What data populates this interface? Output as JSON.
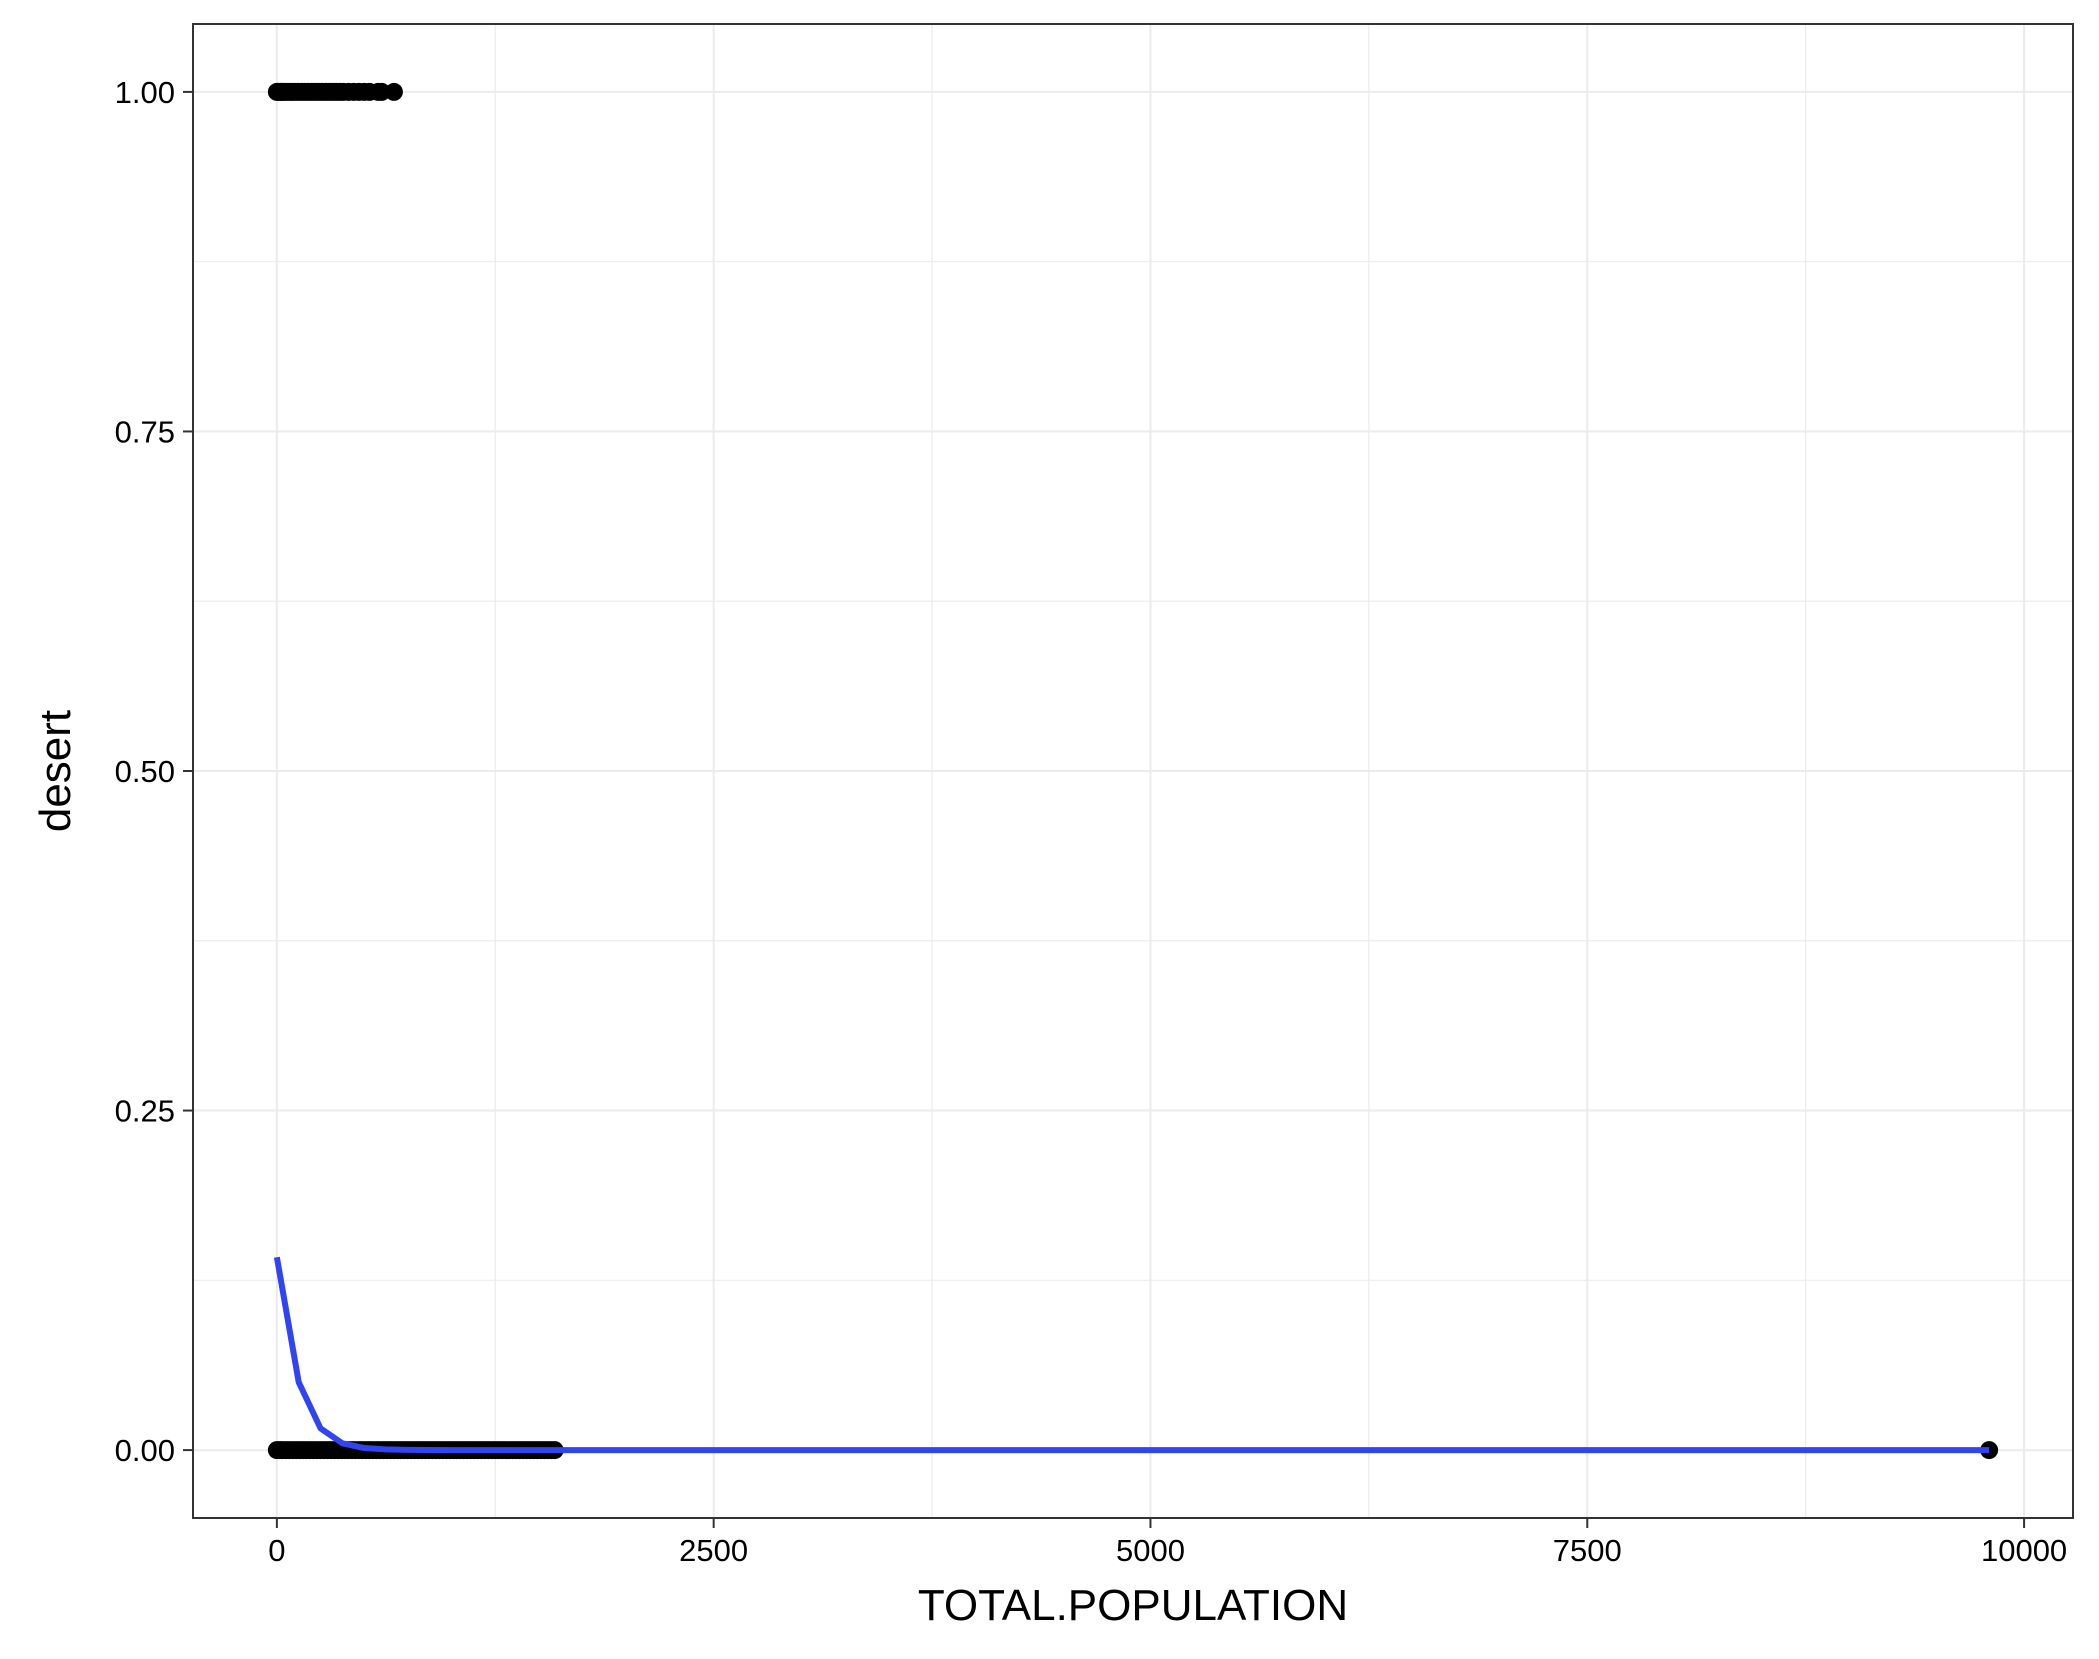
{
  "chart_data": {
    "type": "scatter",
    "title": "",
    "xlabel": "TOTAL.POPULATION",
    "ylabel": "desert",
    "xlim": [
      -480,
      10280
    ],
    "ylim": [
      -0.05,
      1.05
    ],
    "grid": true,
    "x_ticks": [
      0,
      2500,
      5000,
      7500,
      10000
    ],
    "x_tick_labels": [
      "0",
      "2500",
      "5000",
      "7500",
      "10000"
    ],
    "y_ticks": [
      0,
      0.25,
      0.5,
      0.75,
      1
    ],
    "y_tick_labels": [
      "0.00",
      "0.25",
      "0.50",
      "0.75",
      "1.00"
    ],
    "colors": {
      "points": "#000000",
      "fit_line": "#3045f0",
      "panel_border": "#333333",
      "grid": "#ebebeb"
    },
    "series": [
      {
        "kind": "points",
        "points": [
          [
            0,
            1
          ],
          [
            10,
            1
          ],
          [
            20,
            1
          ],
          [
            30,
            1
          ],
          [
            40,
            1
          ],
          [
            55,
            1
          ],
          [
            70,
            1
          ],
          [
            85,
            1
          ],
          [
            100,
            1
          ],
          [
            120,
            1
          ],
          [
            140,
            1
          ],
          [
            160,
            1
          ],
          [
            180,
            1
          ],
          [
            200,
            1
          ],
          [
            220,
            1
          ],
          [
            240,
            1
          ],
          [
            260,
            1
          ],
          [
            280,
            1
          ],
          [
            300,
            1
          ],
          [
            320,
            1
          ],
          [
            340,
            1
          ],
          [
            360,
            1
          ],
          [
            380,
            1
          ],
          [
            410,
            1
          ],
          [
            440,
            1
          ],
          [
            470,
            1
          ],
          [
            500,
            1
          ],
          [
            530,
            1
          ],
          [
            580,
            1
          ],
          [
            600,
            1
          ],
          [
            670,
            1
          ],
          [
            0,
            0
          ],
          [
            15,
            0
          ],
          [
            30,
            0
          ],
          [
            50,
            0
          ],
          [
            70,
            0
          ],
          [
            90,
            0
          ],
          [
            110,
            0
          ],
          [
            130,
            0
          ],
          [
            150,
            0
          ],
          [
            170,
            0
          ],
          [
            190,
            0
          ],
          [
            210,
            0
          ],
          [
            230,
            0
          ],
          [
            250,
            0
          ],
          [
            270,
            0
          ],
          [
            290,
            0
          ],
          [
            310,
            0
          ],
          [
            330,
            0
          ],
          [
            350,
            0
          ],
          [
            370,
            0
          ],
          [
            390,
            0
          ],
          [
            410,
            0
          ],
          [
            430,
            0
          ],
          [
            450,
            0
          ],
          [
            470,
            0
          ],
          [
            490,
            0
          ],
          [
            510,
            0
          ],
          [
            530,
            0
          ],
          [
            550,
            0
          ],
          [
            570,
            0
          ],
          [
            590,
            0
          ],
          [
            610,
            0
          ],
          [
            630,
            0
          ],
          [
            650,
            0
          ],
          [
            670,
            0
          ],
          [
            690,
            0
          ],
          [
            710,
            0
          ],
          [
            730,
            0
          ],
          [
            750,
            0
          ],
          [
            770,
            0
          ],
          [
            790,
            0
          ],
          [
            810,
            0
          ],
          [
            830,
            0
          ],
          [
            850,
            0
          ],
          [
            870,
            0
          ],
          [
            890,
            0
          ],
          [
            910,
            0
          ],
          [
            930,
            0
          ],
          [
            950,
            0
          ],
          [
            970,
            0
          ],
          [
            990,
            0
          ],
          [
            1010,
            0
          ],
          [
            1030,
            0
          ],
          [
            1050,
            0
          ],
          [
            1070,
            0
          ],
          [
            1090,
            0
          ],
          [
            1110,
            0
          ],
          [
            1130,
            0
          ],
          [
            1150,
            0
          ],
          [
            1170,
            0
          ],
          [
            1190,
            0
          ],
          [
            1210,
            0
          ],
          [
            1230,
            0
          ],
          [
            1250,
            0
          ],
          [
            1270,
            0
          ],
          [
            1290,
            0
          ],
          [
            1310,
            0
          ],
          [
            1330,
            0
          ],
          [
            1350,
            0
          ],
          [
            1370,
            0
          ],
          [
            1390,
            0
          ],
          [
            1410,
            0
          ],
          [
            1430,
            0
          ],
          [
            1450,
            0
          ],
          [
            1470,
            0
          ],
          [
            1490,
            0
          ],
          [
            1510,
            0
          ],
          [
            1530,
            0
          ],
          [
            1550,
            0
          ],
          [
            1570,
            0
          ],
          [
            1590,
            0
          ],
          [
            9800,
            0
          ]
        ]
      },
      {
        "kind": "fit_line",
        "x": [
          0,
          125,
          250,
          375,
          500,
          625,
          750,
          1000,
          1500,
          2500,
          5000,
          7500,
          9800
        ],
        "y": [
          0.142,
          0.05,
          0.016,
          0.005,
          0.0015,
          0.0005,
          0.0002,
          0.0,
          0.0,
          0.0,
          0.0,
          0.0,
          0.0
        ]
      }
    ]
  }
}
